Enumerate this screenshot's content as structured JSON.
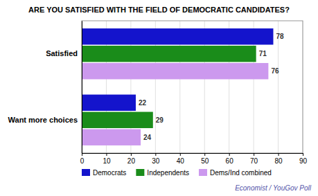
{
  "chart_data": {
    "type": "bar",
    "orientation": "horizontal",
    "title": "ARE YOU SATISFIED WITH THE FIELD OF DEMOCRATIC CANDIDATES?",
    "categories": [
      "Satisfied",
      "Want more choices"
    ],
    "series": [
      {
        "name": "Democrats",
        "color": "#1414CC",
        "values": [
          78,
          22
        ]
      },
      {
        "name": "Independents",
        "color": "#1A8C1A",
        "values": [
          71,
          29
        ]
      },
      {
        "name": "Dems/Ind combined",
        "color": "#CC99EE",
        "values": [
          76,
          24
        ]
      }
    ],
    "xlim": [
      0,
      90
    ],
    "xticks": [
      0,
      10,
      20,
      30,
      40,
      50,
      60,
      70,
      80,
      90
    ],
    "grid": true,
    "data_labels": true,
    "legend": "bottom left",
    "annotations": [
      "Economist / YouGov Poll"
    ]
  }
}
